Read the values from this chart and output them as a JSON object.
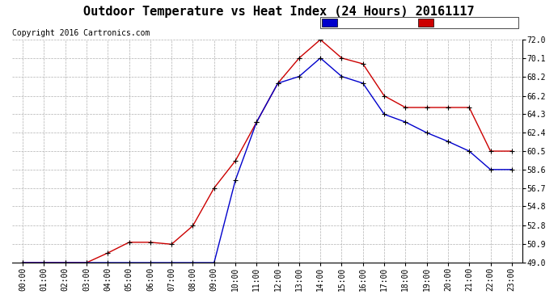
{
  "title": "Outdoor Temperature vs Heat Index (24 Hours) 20161117",
  "copyright": "Copyright 2016 Cartronics.com",
  "hours": [
    "00:00",
    "01:00",
    "02:00",
    "03:00",
    "04:00",
    "05:00",
    "06:00",
    "07:00",
    "08:00",
    "09:00",
    "10:00",
    "11:00",
    "12:00",
    "13:00",
    "14:00",
    "15:00",
    "16:00",
    "17:00",
    "18:00",
    "19:00",
    "20:00",
    "21:00",
    "22:00",
    "23:00"
  ],
  "temperature": [
    49.0,
    49.0,
    49.0,
    49.0,
    50.0,
    51.1,
    51.1,
    50.9,
    52.8,
    56.7,
    59.5,
    63.5,
    67.5,
    70.1,
    72.0,
    70.1,
    69.5,
    66.2,
    65.0,
    65.0,
    65.0,
    65.0,
    60.5,
    60.5
  ],
  "heat_index": [
    49.0,
    49.0,
    49.0,
    49.0,
    49.0,
    49.0,
    49.0,
    49.0,
    49.0,
    49.0,
    57.5,
    63.5,
    67.5,
    68.2,
    70.1,
    68.2,
    67.5,
    64.3,
    63.5,
    62.4,
    61.5,
    60.5,
    58.6,
    58.6
  ],
  "ylim": [
    49.0,
    72.0
  ],
  "yticks": [
    49.0,
    50.9,
    52.8,
    54.8,
    56.7,
    58.6,
    60.5,
    62.4,
    64.3,
    66.2,
    68.2,
    70.1,
    72.0
  ],
  "temp_color": "#cc0000",
  "heat_color": "#0000cc",
  "bg_color": "#ffffff",
  "grid_color": "#b0b0b0",
  "legend_heat_bg": "#0000cc",
  "legend_temp_bg": "#cc0000",
  "title_fontsize": 11,
  "copyright_fontsize": 7,
  "tick_fontsize": 7
}
